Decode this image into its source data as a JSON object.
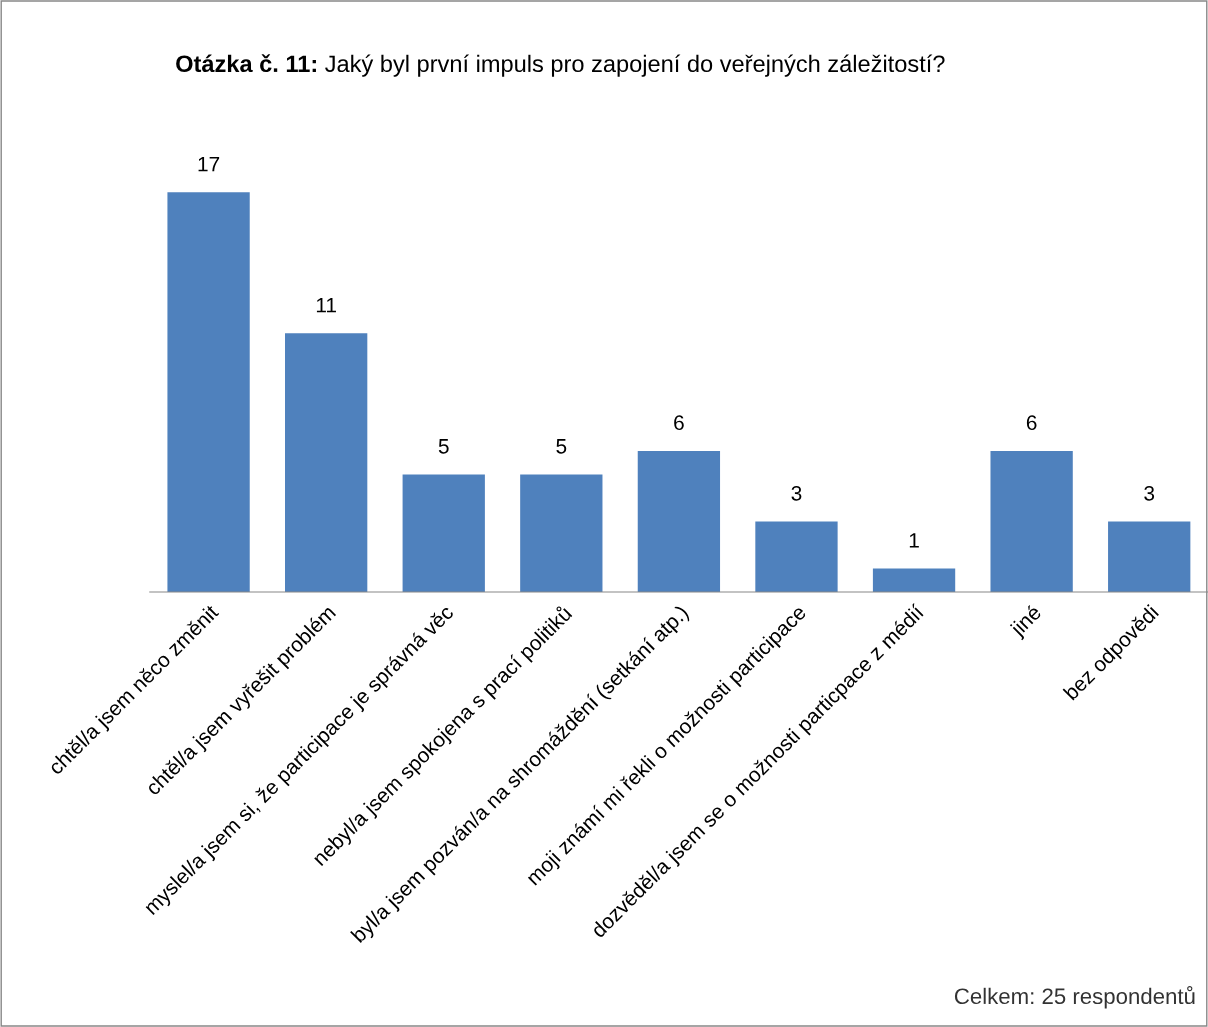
{
  "chart_data": {
    "type": "bar",
    "title": "Otázka č. 11:",
    "subtitle": "Jaký byl první impuls pro zapojení do veřejných záležitostí?",
    "categories": [
      "chtěl/a jsem něco změnit",
      "chtěl/a jsem vyřešit problém",
      "myslel/a jsem si, že participace je správná věc",
      "nebyl/a jsem spokojena s prací politiků",
      "byl/a jsem pozván/a na shromáždění (setkání atp.)",
      "moji známí mi řekli o možnosti participace",
      "dozvěděl/a jsem se o možnosti particpace z médií",
      "jiné",
      "bez odpovědi"
    ],
    "values": [
      17,
      11,
      5,
      5,
      6,
      3,
      1,
      6,
      3
    ],
    "color": "#4f81bd",
    "data_labels": true,
    "grid": false,
    "legend": false,
    "annotations": [
      "Celkem: 25 respondentů"
    ]
  }
}
